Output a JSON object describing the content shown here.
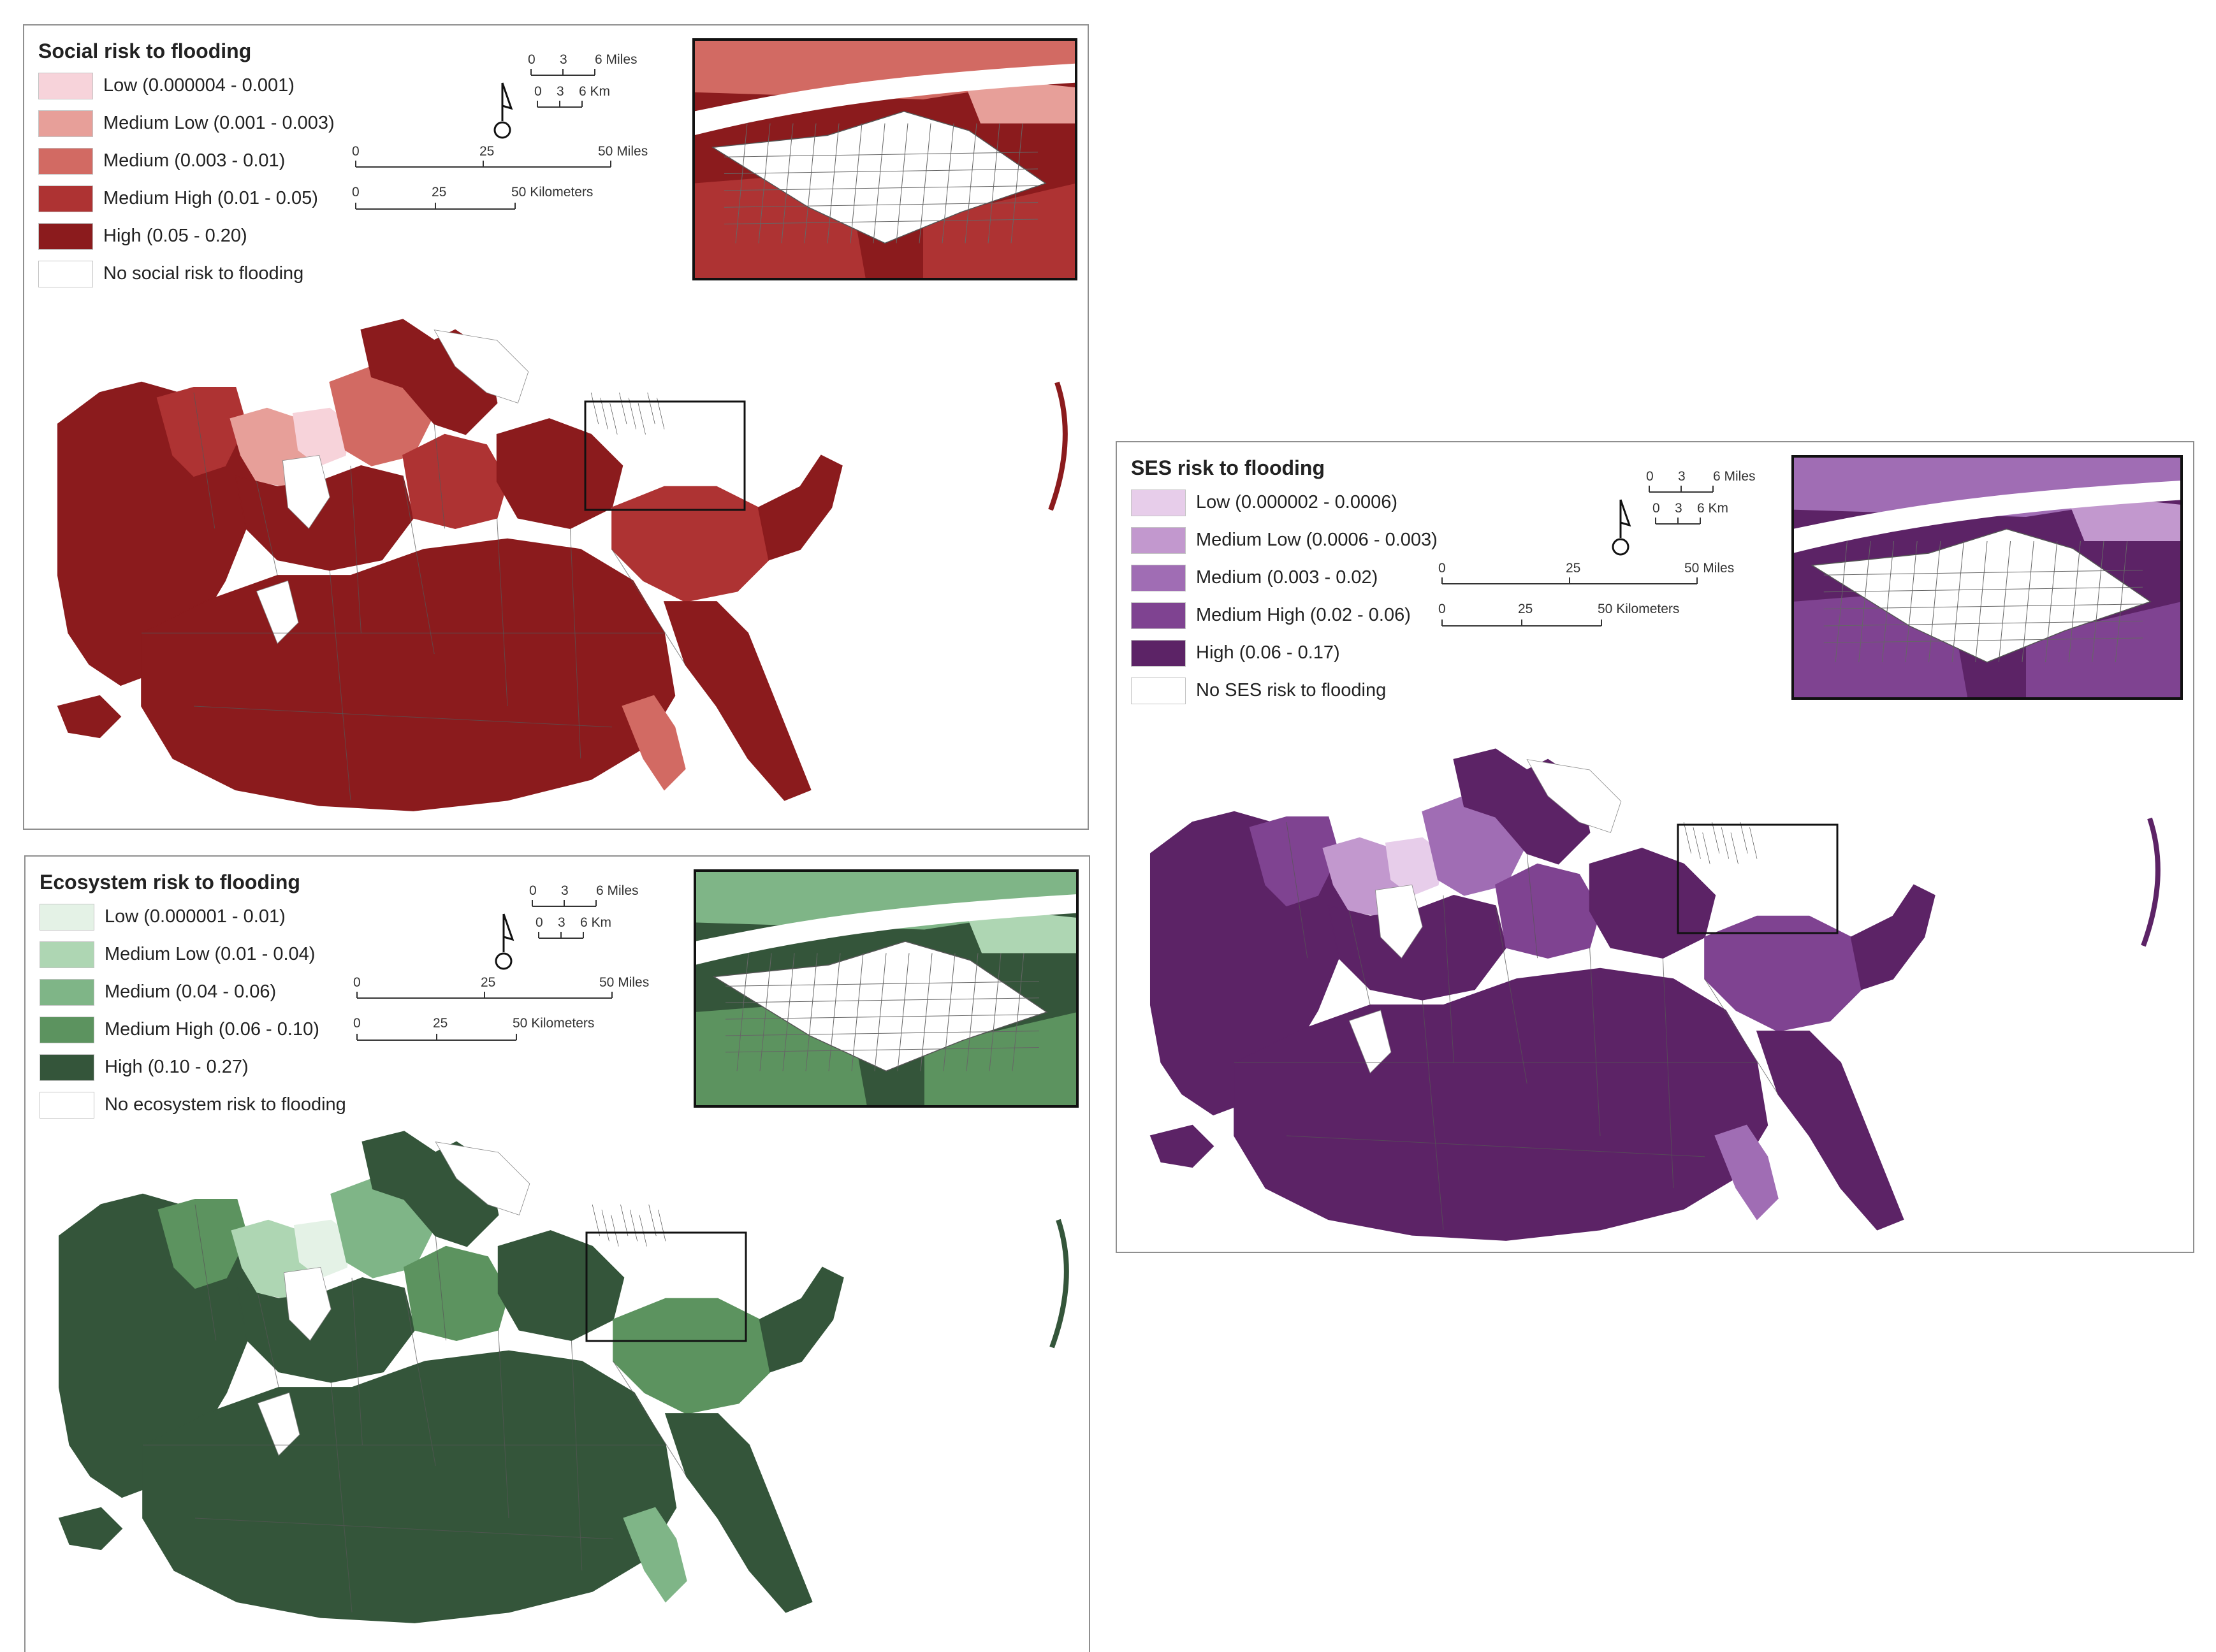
{
  "maps": [
    {
      "id": "social",
      "title": "Social risk to flooding",
      "legend": [
        {
          "label": "Low (0.000004 - 0.001)",
          "color": "#f7d3da"
        },
        {
          "label": "Medium Low (0.001 - 0.003)",
          "color": "#e79f99"
        },
        {
          "label": "Medium (0.003 - 0.01)",
          "color": "#d26a63"
        },
        {
          "label": "Medium High (0.01 - 0.05)",
          "color": "#ae3333"
        },
        {
          "label": "High (0.05 - 0.20)",
          "color": "#8b1b1d"
        },
        {
          "label": "No social risk to flooding",
          "color": "#ffffff"
        }
      ],
      "inset_scale": {
        "miles_ticks": [
          "0",
          "3",
          "6 Miles"
        ],
        "km_ticks": [
          "0",
          "3",
          "6 Km"
        ]
      },
      "main_scale": {
        "miles_ticks": [
          "0",
          "25",
          "50 Miles"
        ],
        "km_ticks": [
          "0",
          "25",
          "50 Kilometers"
        ]
      }
    },
    {
      "id": "ecosystem",
      "title": "Ecosystem risk to flooding",
      "legend": [
        {
          "label": "Low (0.000001 - 0.01)",
          "color": "#e4f2e6"
        },
        {
          "label": "Medium Low (0.01 - 0.04)",
          "color": "#aed6b3"
        },
        {
          "label": "Medium (0.04 - 0.06)",
          "color": "#7fb587"
        },
        {
          "label": "Medium High (0.06 - 0.10)",
          "color": "#5c935f"
        },
        {
          "label": "High (0.10 - 0.27)",
          "color": "#34553a"
        },
        {
          "label": "No ecosystem risk to flooding",
          "color": "#ffffff"
        }
      ],
      "inset_scale": {
        "miles_ticks": [
          "0",
          "3",
          "6 Miles"
        ],
        "km_ticks": [
          "0",
          "3",
          "6 Km"
        ]
      },
      "main_scale": {
        "miles_ticks": [
          "0",
          "25",
          "50 Miles"
        ],
        "km_ticks": [
          "0",
          "25",
          "50 Kilometers"
        ]
      }
    },
    {
      "id": "ses",
      "title": "SES risk to flooding",
      "legend": [
        {
          "label": "Low (0.000002 - 0.0006)",
          "color": "#e7cdea"
        },
        {
          "label": "Medium Low (0.0006 - 0.003)",
          "color": "#c298ce"
        },
        {
          "label": "Medium (0.003 - 0.02)",
          "color": "#a06db4"
        },
        {
          "label": "Medium High (0.02 - 0.06)",
          "color": "#7f4391"
        },
        {
          "label": "High (0.06 - 0.17)",
          "color": "#5c2366"
        },
        {
          "label": "No SES risk to flooding",
          "color": "#ffffff"
        }
      ],
      "inset_scale": {
        "miles_ticks": [
          "0",
          "3",
          "6 Miles"
        ],
        "km_ticks": [
          "0",
          "3",
          "6 Km"
        ]
      },
      "main_scale": {
        "miles_ticks": [
          "0",
          "25",
          "50 Miles"
        ],
        "km_ticks": [
          "0",
          "25",
          "50 Kilometers"
        ]
      }
    }
  ]
}
